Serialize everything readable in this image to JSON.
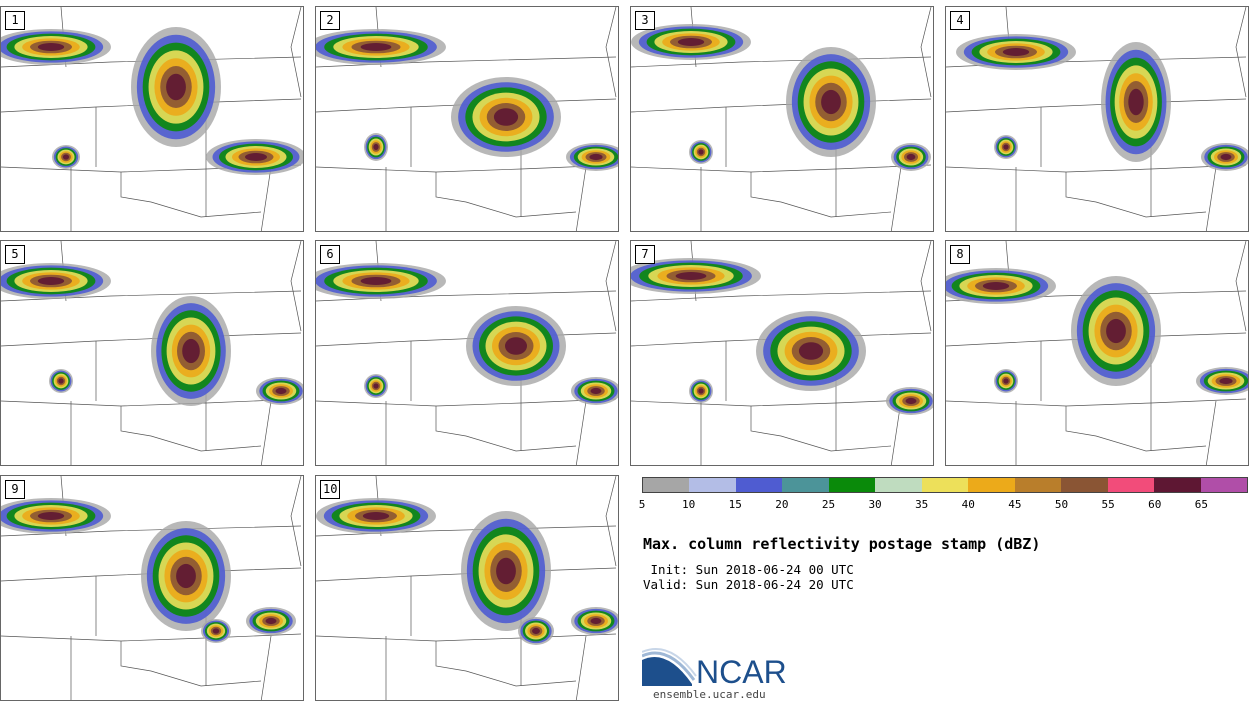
{
  "panels": [
    {
      "label": "1"
    },
    {
      "label": "2"
    },
    {
      "label": "3"
    },
    {
      "label": "4"
    },
    {
      "label": "5"
    },
    {
      "label": "6"
    },
    {
      "label": "7"
    },
    {
      "label": "8"
    },
    {
      "label": "9"
    },
    {
      "label": "10"
    }
  ],
  "colorbar": {
    "colors": [
      "#a6a6a6",
      "#b3bde6",
      "#4f5cd1",
      "#4c9499",
      "#0a8a0a",
      "#bfdcbf",
      "#ede05a",
      "#ecaa1a",
      "#b97e2b",
      "#8a5534",
      "#f24c7a",
      "#5e1733",
      "#b04ea8"
    ],
    "ticks": [
      "5",
      "10",
      "15",
      "20",
      "25",
      "30",
      "35",
      "40",
      "45",
      "50",
      "55",
      "60",
      "65"
    ]
  },
  "title": "Max. column reflectivity postage stamp (dBZ)",
  "init": " Init: Sun 2018-06-24 00 UTC",
  "valid": "Valid: Sun 2018-06-24 20 UTC",
  "logo_text": "NCAR",
  "website": "ensemble.ucar.edu"
}
